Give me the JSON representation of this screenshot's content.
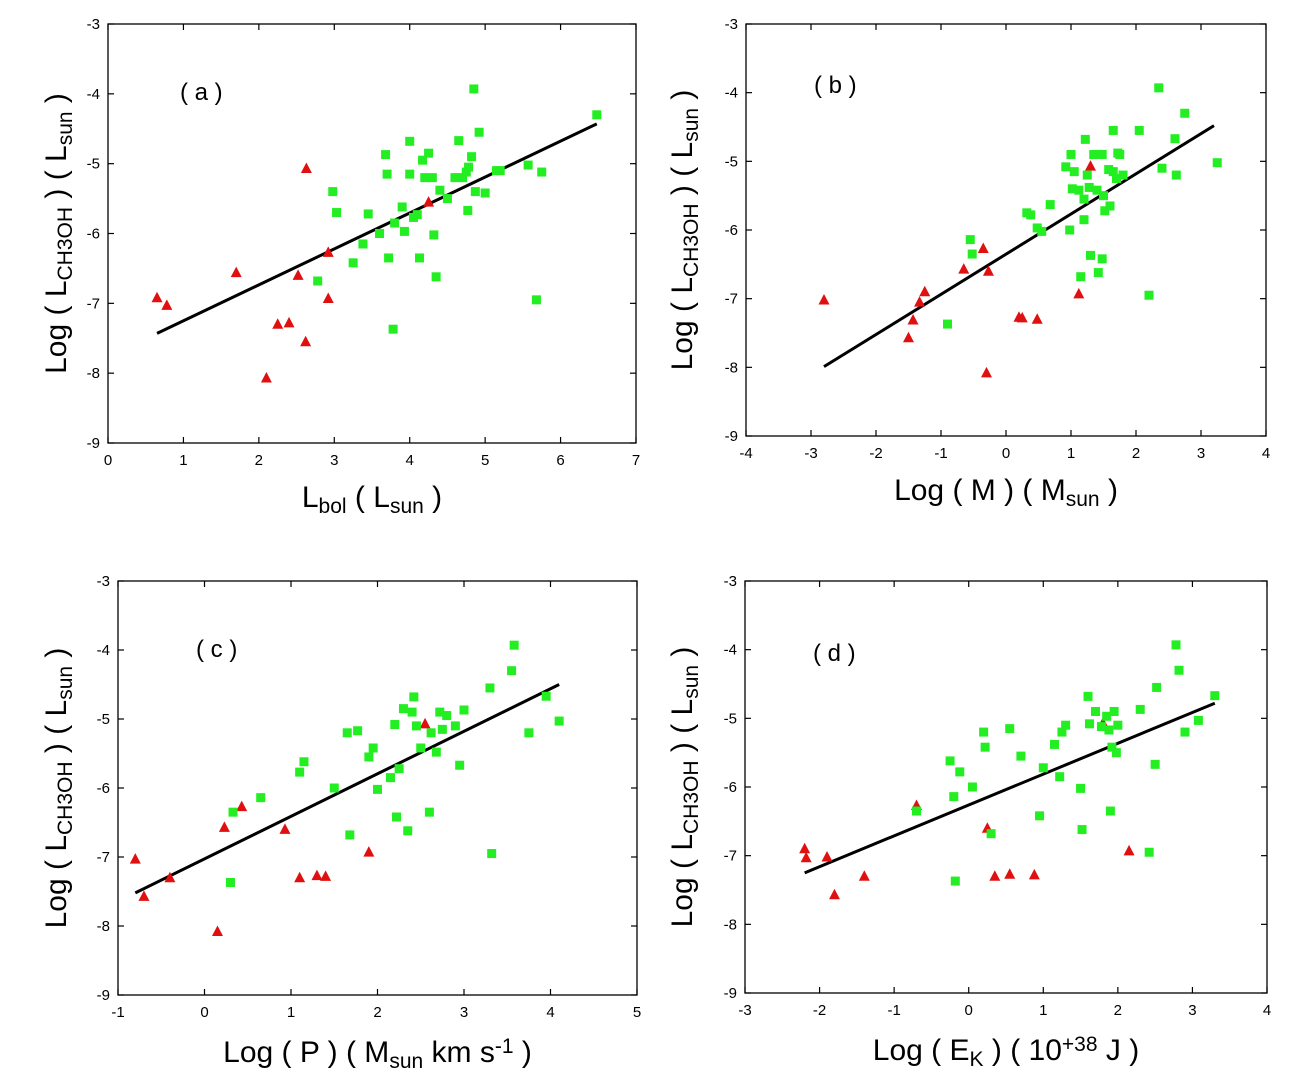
{
  "colors": {
    "green_square": "#22ee22",
    "red_triangle": "#e01010",
    "fit_line": "#000000"
  },
  "chart_data": [
    {
      "type": "scatter",
      "panel_label": "( a )",
      "xlabel": {
        "main": "L",
        "sub": "bol",
        "rest": " ( L",
        "sub2": "sun",
        "rest2": " )"
      },
      "ylabel": {
        "main": "Log ( L",
        "sub": "CH3OH",
        "rest": " )  ( L",
        "sub2": "sun",
        "rest2": " )"
      },
      "xlim": [
        0,
        7
      ],
      "ylim": [
        -9,
        -3
      ],
      "xticks": [
        0,
        1,
        2,
        3,
        4,
        5,
        6,
        7
      ],
      "yticks": [
        -9,
        -8,
        -7,
        -6,
        -5,
        -4,
        -3
      ],
      "series": [
        {
          "marker": "triangle",
          "color": "red",
          "points": [
            [
              0.65,
              -6.92
            ],
            [
              0.78,
              -7.03
            ],
            [
              1.7,
              -6.56
            ],
            [
              2.1,
              -8.07
            ],
            [
              2.25,
              -7.3
            ],
            [
              2.4,
              -7.28
            ],
            [
              2.52,
              -6.6
            ],
            [
              2.62,
              -7.55
            ],
            [
              2.63,
              -5.07
            ],
            [
              2.92,
              -6.27
            ],
            [
              2.92,
              -6.93
            ],
            [
              4.25,
              -5.55
            ]
          ]
        },
        {
          "marker": "square",
          "color": "green",
          "points": [
            [
              2.78,
              -6.68
            ],
            [
              2.98,
              -5.4
            ],
            [
              3.03,
              -5.7
            ],
            [
              3.25,
              -6.42
            ],
            [
              3.38,
              -6.15
            ],
            [
              3.45,
              -5.72
            ],
            [
              3.6,
              -6.0
            ],
            [
              3.68,
              -4.87
            ],
            [
              3.7,
              -5.15
            ],
            [
              3.72,
              -6.35
            ],
            [
              3.78,
              -7.37
            ],
            [
              3.8,
              -5.85
            ],
            [
              3.9,
              -5.62
            ],
            [
              3.93,
              -5.97
            ],
            [
              4.0,
              -4.68
            ],
            [
              4.0,
              -5.15
            ],
            [
              4.05,
              -5.77
            ],
            [
              4.1,
              -5.73
            ],
            [
              4.13,
              -6.35
            ],
            [
              4.17,
              -4.95
            ],
            [
              4.2,
              -5.2
            ],
            [
              4.25,
              -4.85
            ],
            [
              4.3,
              -5.2
            ],
            [
              4.32,
              -6.02
            ],
            [
              4.35,
              -6.62
            ],
            [
              4.4,
              -5.38
            ],
            [
              4.5,
              -5.5
            ],
            [
              4.6,
              -5.2
            ],
            [
              4.65,
              -4.67
            ],
            [
              4.7,
              -5.2
            ],
            [
              4.75,
              -5.12
            ],
            [
              4.77,
              -5.67
            ],
            [
              4.78,
              -5.05
            ],
            [
              4.82,
              -4.9
            ],
            [
              4.85,
              -3.93
            ],
            [
              4.87,
              -5.4
            ],
            [
              4.92,
              -4.55
            ],
            [
              5.0,
              -5.42
            ],
            [
              5.15,
              -5.1
            ],
            [
              5.2,
              -5.1
            ],
            [
              5.57,
              -5.02
            ],
            [
              5.68,
              -6.95
            ],
            [
              5.75,
              -5.12
            ],
            [
              6.48,
              -4.3
            ]
          ]
        }
      ],
      "fit_line": [
        [
          0.65,
          -7.43
        ],
        [
          6.48,
          -4.43
        ]
      ]
    },
    {
      "type": "scatter",
      "panel_label": "( b )",
      "xlabel": {
        "main": "Log ( M )  ( M",
        "sub": "sun",
        "rest": " )"
      },
      "ylabel": {
        "main": "Log ( L",
        "sub": "CH3OH",
        "rest": " )  ( L",
        "sub2": "sun",
        "rest2": " )"
      },
      "xlim": [
        -4,
        4
      ],
      "ylim": [
        -9,
        -3
      ],
      "xticks": [
        -4,
        -3,
        -2,
        -1,
        0,
        1,
        2,
        3,
        4
      ],
      "yticks": [
        -9,
        -8,
        -7,
        -6,
        -5,
        -4,
        -3
      ],
      "series": [
        {
          "marker": "triangle",
          "color": "red",
          "points": [
            [
              -2.8,
              -7.02
            ],
            [
              -1.5,
              -7.57
            ],
            [
              -1.43,
              -7.31
            ],
            [
              -1.33,
              -7.05
            ],
            [
              -1.25,
              -6.9
            ],
            [
              -0.65,
              -6.57
            ],
            [
              -0.35,
              -6.27
            ],
            [
              -0.3,
              -8.08
            ],
            [
              -0.27,
              -6.6
            ],
            [
              0.2,
              -7.27
            ],
            [
              0.25,
              -7.28
            ],
            [
              0.48,
              -7.3
            ],
            [
              1.12,
              -6.93
            ],
            [
              1.3,
              -5.07
            ]
          ]
        },
        {
          "marker": "square",
          "color": "green",
          "points": [
            [
              -0.9,
              -7.37
            ],
            [
              -0.55,
              -6.14
            ],
            [
              -0.52,
              -6.35
            ],
            [
              0.32,
              -5.75
            ],
            [
              0.38,
              -5.78
            ],
            [
              0.48,
              -5.97
            ],
            [
              0.55,
              -6.02
            ],
            [
              0.68,
              -5.63
            ],
            [
              0.92,
              -5.08
            ],
            [
              0.98,
              -6.0
            ],
            [
              1.0,
              -4.9
            ],
            [
              1.02,
              -5.4
            ],
            [
              1.05,
              -5.15
            ],
            [
              1.12,
              -5.42
            ],
            [
              1.15,
              -6.68
            ],
            [
              1.2,
              -5.85
            ],
            [
              1.2,
              -5.55
            ],
            [
              1.22,
              -4.68
            ],
            [
              1.25,
              -5.2
            ],
            [
              1.28,
              -5.38
            ],
            [
              1.3,
              -6.37
            ],
            [
              1.35,
              -4.9
            ],
            [
              1.4,
              -5.42
            ],
            [
              1.42,
              -6.62
            ],
            [
              1.48,
              -4.9
            ],
            [
              1.48,
              -6.42
            ],
            [
              1.5,
              -5.5
            ],
            [
              1.52,
              -5.72
            ],
            [
              1.58,
              -5.12
            ],
            [
              1.6,
              -5.65
            ],
            [
              1.65,
              -5.15
            ],
            [
              1.65,
              -4.55
            ],
            [
              1.7,
              -5.25
            ],
            [
              1.72,
              -4.88
            ],
            [
              1.75,
              -4.9
            ],
            [
              1.8,
              -5.2
            ],
            [
              2.05,
              -4.55
            ],
            [
              2.2,
              -6.95
            ],
            [
              2.35,
              -3.93
            ],
            [
              2.4,
              -5.1
            ],
            [
              2.6,
              -4.67
            ],
            [
              2.62,
              -5.2
            ],
            [
              2.75,
              -4.3
            ],
            [
              3.25,
              -5.02
            ]
          ]
        }
      ],
      "fit_line": [
        [
          -2.8,
          -7.99
        ],
        [
          3.2,
          -4.48
        ]
      ]
    },
    {
      "type": "scatter",
      "panel_label": "( c )",
      "xlabel": {
        "main": "Log ( P )  ( M",
        "sub": "sun",
        "rest": " km s",
        "sup": "-1",
        "rest2": " )"
      },
      "ylabel": {
        "main": "Log ( L",
        "sub": "CH3OH",
        "rest": " )  ( L",
        "sub2": "sun",
        "rest2": " )"
      },
      "xlim": [
        -1,
        5
      ],
      "ylim": [
        -9,
        -3
      ],
      "xticks": [
        -1,
        0,
        1,
        2,
        3,
        4,
        5
      ],
      "yticks": [
        -9,
        -8,
        -7,
        -6,
        -5,
        -4,
        -3
      ],
      "series": [
        {
          "marker": "triangle",
          "color": "red",
          "points": [
            [
              -0.8,
              -7.03
            ],
            [
              -0.7,
              -7.57
            ],
            [
              -0.4,
              -7.3
            ],
            [
              0.15,
              -8.08
            ],
            [
              0.23,
              -6.57
            ],
            [
              0.43,
              -6.27
            ],
            [
              0.93,
              -6.6
            ],
            [
              1.1,
              -7.3
            ],
            [
              1.3,
              -7.27
            ],
            [
              1.4,
              -7.28
            ],
            [
              1.9,
              -6.93
            ],
            [
              2.55,
              -5.07
            ]
          ]
        },
        {
          "marker": "square",
          "color": "green",
          "points": [
            [
              0.3,
              -7.37
            ],
            [
              0.33,
              -6.35
            ],
            [
              0.65,
              -6.14
            ],
            [
              1.1,
              -5.77
            ],
            [
              1.15,
              -5.62
            ],
            [
              1.5,
              -6.0
            ],
            [
              1.65,
              -5.2
            ],
            [
              1.68,
              -6.68
            ],
            [
              1.77,
              -5.17
            ],
            [
              1.9,
              -5.55
            ],
            [
              1.95,
              -5.42
            ],
            [
              2.0,
              -6.02
            ],
            [
              2.15,
              -5.85
            ],
            [
              2.2,
              -5.08
            ],
            [
              2.22,
              -6.42
            ],
            [
              2.25,
              -5.72
            ],
            [
              2.3,
              -4.85
            ],
            [
              2.35,
              -6.62
            ],
            [
              2.4,
              -4.9
            ],
            [
              2.42,
              -4.68
            ],
            [
              2.45,
              -5.1
            ],
            [
              2.5,
              -5.42
            ],
            [
              2.6,
              -6.35
            ],
            [
              2.62,
              -5.2
            ],
            [
              2.68,
              -5.48
            ],
            [
              2.72,
              -4.9
            ],
            [
              2.75,
              -5.15
            ],
            [
              2.8,
              -4.95
            ],
            [
              2.9,
              -5.1
            ],
            [
              2.95,
              -5.67
            ],
            [
              3.0,
              -4.87
            ],
            [
              3.3,
              -4.55
            ],
            [
              3.32,
              -6.95
            ],
            [
              3.55,
              -4.3
            ],
            [
              3.58,
              -3.93
            ],
            [
              3.75,
              -5.2
            ],
            [
              3.95,
              -4.67
            ],
            [
              4.1,
              -5.03
            ]
          ]
        }
      ],
      "fit_line": [
        [
          -0.8,
          -7.52
        ],
        [
          4.1,
          -4.5
        ]
      ]
    },
    {
      "type": "scatter",
      "panel_label": "( d )",
      "xlabel": {
        "main": "Log ( E",
        "sub": "K",
        "rest": " )  ( 10",
        "sup": "+38",
        "rest2": " J )"
      },
      "ylabel": {
        "main": "Log ( L",
        "sub": "CH3OH",
        "rest": " )  ( L",
        "sub2": "sun",
        "rest2": " )"
      },
      "xlim": [
        -3,
        4
      ],
      "ylim": [
        -9,
        -3
      ],
      "xticks": [
        -3,
        -2,
        -1,
        0,
        1,
        2,
        3,
        4
      ],
      "yticks": [
        -9,
        -8,
        -7,
        -6,
        -5,
        -4,
        -3
      ],
      "series": [
        {
          "marker": "triangle",
          "color": "red",
          "points": [
            [
              -2.2,
              -6.9
            ],
            [
              -2.18,
              -7.03
            ],
            [
              -1.9,
              -7.02
            ],
            [
              -1.8,
              -7.57
            ],
            [
              -1.4,
              -7.3
            ],
            [
              -0.7,
              -6.27
            ],
            [
              0.25,
              -6.6
            ],
            [
              0.35,
              -7.3
            ],
            [
              0.55,
              -7.27
            ],
            [
              0.88,
              -7.28
            ],
            [
              1.8,
              -5.07
            ],
            [
              2.15,
              -6.93
            ]
          ]
        },
        {
          "marker": "square",
          "color": "green",
          "points": [
            [
              -0.7,
              -6.35
            ],
            [
              -0.25,
              -5.62
            ],
            [
              -0.2,
              -6.14
            ],
            [
              -0.18,
              -7.37
            ],
            [
              -0.12,
              -5.78
            ],
            [
              0.05,
              -6.0
            ],
            [
              0.2,
              -5.2
            ],
            [
              0.22,
              -5.42
            ],
            [
              0.3,
              -6.68
            ],
            [
              0.55,
              -5.15
            ],
            [
              0.7,
              -5.55
            ],
            [
              0.95,
              -6.42
            ],
            [
              1.0,
              -5.72
            ],
            [
              1.15,
              -5.38
            ],
            [
              1.22,
              -5.85
            ],
            [
              1.25,
              -5.2
            ],
            [
              1.3,
              -5.1
            ],
            [
              1.5,
              -6.02
            ],
            [
              1.52,
              -6.62
            ],
            [
              1.6,
              -4.68
            ],
            [
              1.62,
              -5.08
            ],
            [
              1.7,
              -4.9
            ],
            [
              1.78,
              -5.12
            ],
            [
              1.85,
              -4.97
            ],
            [
              1.88,
              -5.17
            ],
            [
              1.9,
              -6.35
            ],
            [
              1.92,
              -5.42
            ],
            [
              1.95,
              -4.9
            ],
            [
              1.98,
              -5.5
            ],
            [
              2.0,
              -5.1
            ],
            [
              2.3,
              -4.87
            ],
            [
              2.42,
              -6.95
            ],
            [
              2.5,
              -5.67
            ],
            [
              2.52,
              -4.55
            ],
            [
              2.78,
              -3.93
            ],
            [
              2.82,
              -4.3
            ],
            [
              2.9,
              -5.2
            ],
            [
              3.08,
              -5.03
            ],
            [
              3.3,
              -4.67
            ]
          ]
        }
      ],
      "fit_line": [
        [
          -2.2,
          -7.25
        ],
        [
          3.3,
          -4.78
        ]
      ]
    }
  ]
}
